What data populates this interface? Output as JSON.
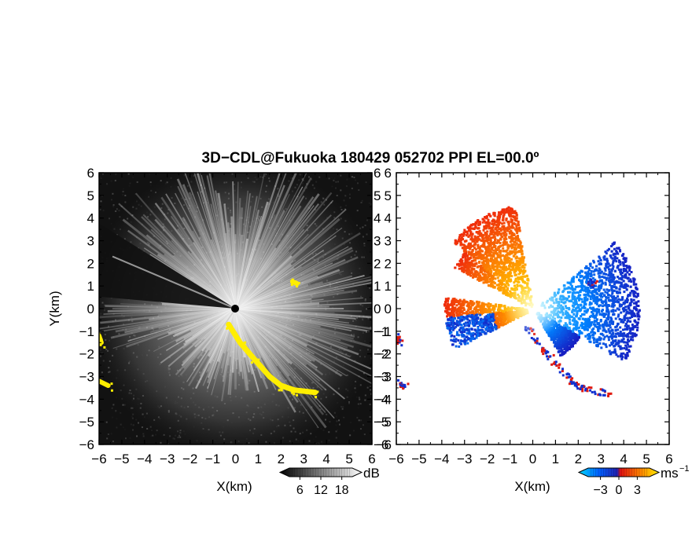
{
  "title": "3D−CDL@Fukuoka 180429 052702 PPI EL=00.0º",
  "colors": {
    "yellow": "#ffee00",
    "background_left": "#121212"
  },
  "chart_data": [
    {
      "type": "heatmap",
      "panel": "left",
      "quantity": "SNR",
      "xlabel": "X(km)",
      "ylabel": "Y(km)",
      "xlim": [
        -6,
        6
      ],
      "ylim": [
        -6,
        6
      ],
      "xticks": [
        "−6",
        "−5",
        "−4",
        "−3",
        "−2",
        "−1",
        "0",
        "1",
        "2",
        "3",
        "4",
        "5",
        "6"
      ],
      "yticks": [
        "6",
        "5",
        "4",
        "3",
        "2",
        "1",
        "0",
        "−1",
        "−2",
        "−3",
        "−4",
        "−5",
        "−6"
      ],
      "colorbar": {
        "unit": "dB",
        "ticks": [
          "6",
          "12",
          "18"
        ],
        "range": [
          3,
          21
        ],
        "colors": [
          "#000000",
          "#ffffff"
        ]
      },
      "features": {
        "radar_center_km": [
          0,
          0
        ],
        "shadowed_sector_deg": [
          148,
          175
        ],
        "yellow_echo_paths_km": [
          [
            [
              -0.3,
              -0.7
            ],
            [
              0.2,
              -1.5
            ],
            [
              0.8,
              -2.2
            ],
            [
              1.5,
              -3.0
            ],
            [
              2.0,
              -3.4
            ],
            [
              2.6,
              -3.6
            ],
            [
              3.5,
              -3.7
            ]
          ],
          [
            [
              -6,
              -3.2
            ],
            [
              -5.6,
              -3.4
            ]
          ],
          [
            [
              -6,
              -1.2
            ],
            [
              -5.9,
              -1.5
            ]
          ],
          [
            [
              2.5,
              1.2
            ],
            [
              2.7,
              1.1
            ]
          ]
        ]
      }
    },
    {
      "type": "heatmap",
      "panel": "right",
      "quantity": "radial velocity",
      "xlabel": "X(km)",
      "ylabel": "",
      "xlim": [
        -6,
        6
      ],
      "ylim": [
        -6,
        6
      ],
      "xticks": [
        "−6",
        "−5",
        "−4",
        "−3",
        "−2",
        "−1",
        "0",
        "1",
        "2",
        "3",
        "4",
        "5",
        "6"
      ],
      "yticks": [
        "6",
        "5",
        "4",
        "3",
        "2",
        "1",
        "0",
        "−1",
        "−2",
        "−3",
        "−4",
        "−5",
        "−6"
      ],
      "colorbar": {
        "unit": "ms",
        "unit_superscript": "−1",
        "ticks": [
          "−3",
          "0",
          "3"
        ],
        "range": [
          -5,
          5
        ],
        "colors": [
          "#00c8ff",
          "#0050ff",
          "#2020c0",
          "#ff1010",
          "#ff8800",
          "#ffee00"
        ]
      },
      "features": {
        "positive_sector_deg": [
          100,
          185
        ],
        "negative_sector_deg": [
          -60,
          40
        ],
        "max_range_km": 4.5
      }
    }
  ]
}
